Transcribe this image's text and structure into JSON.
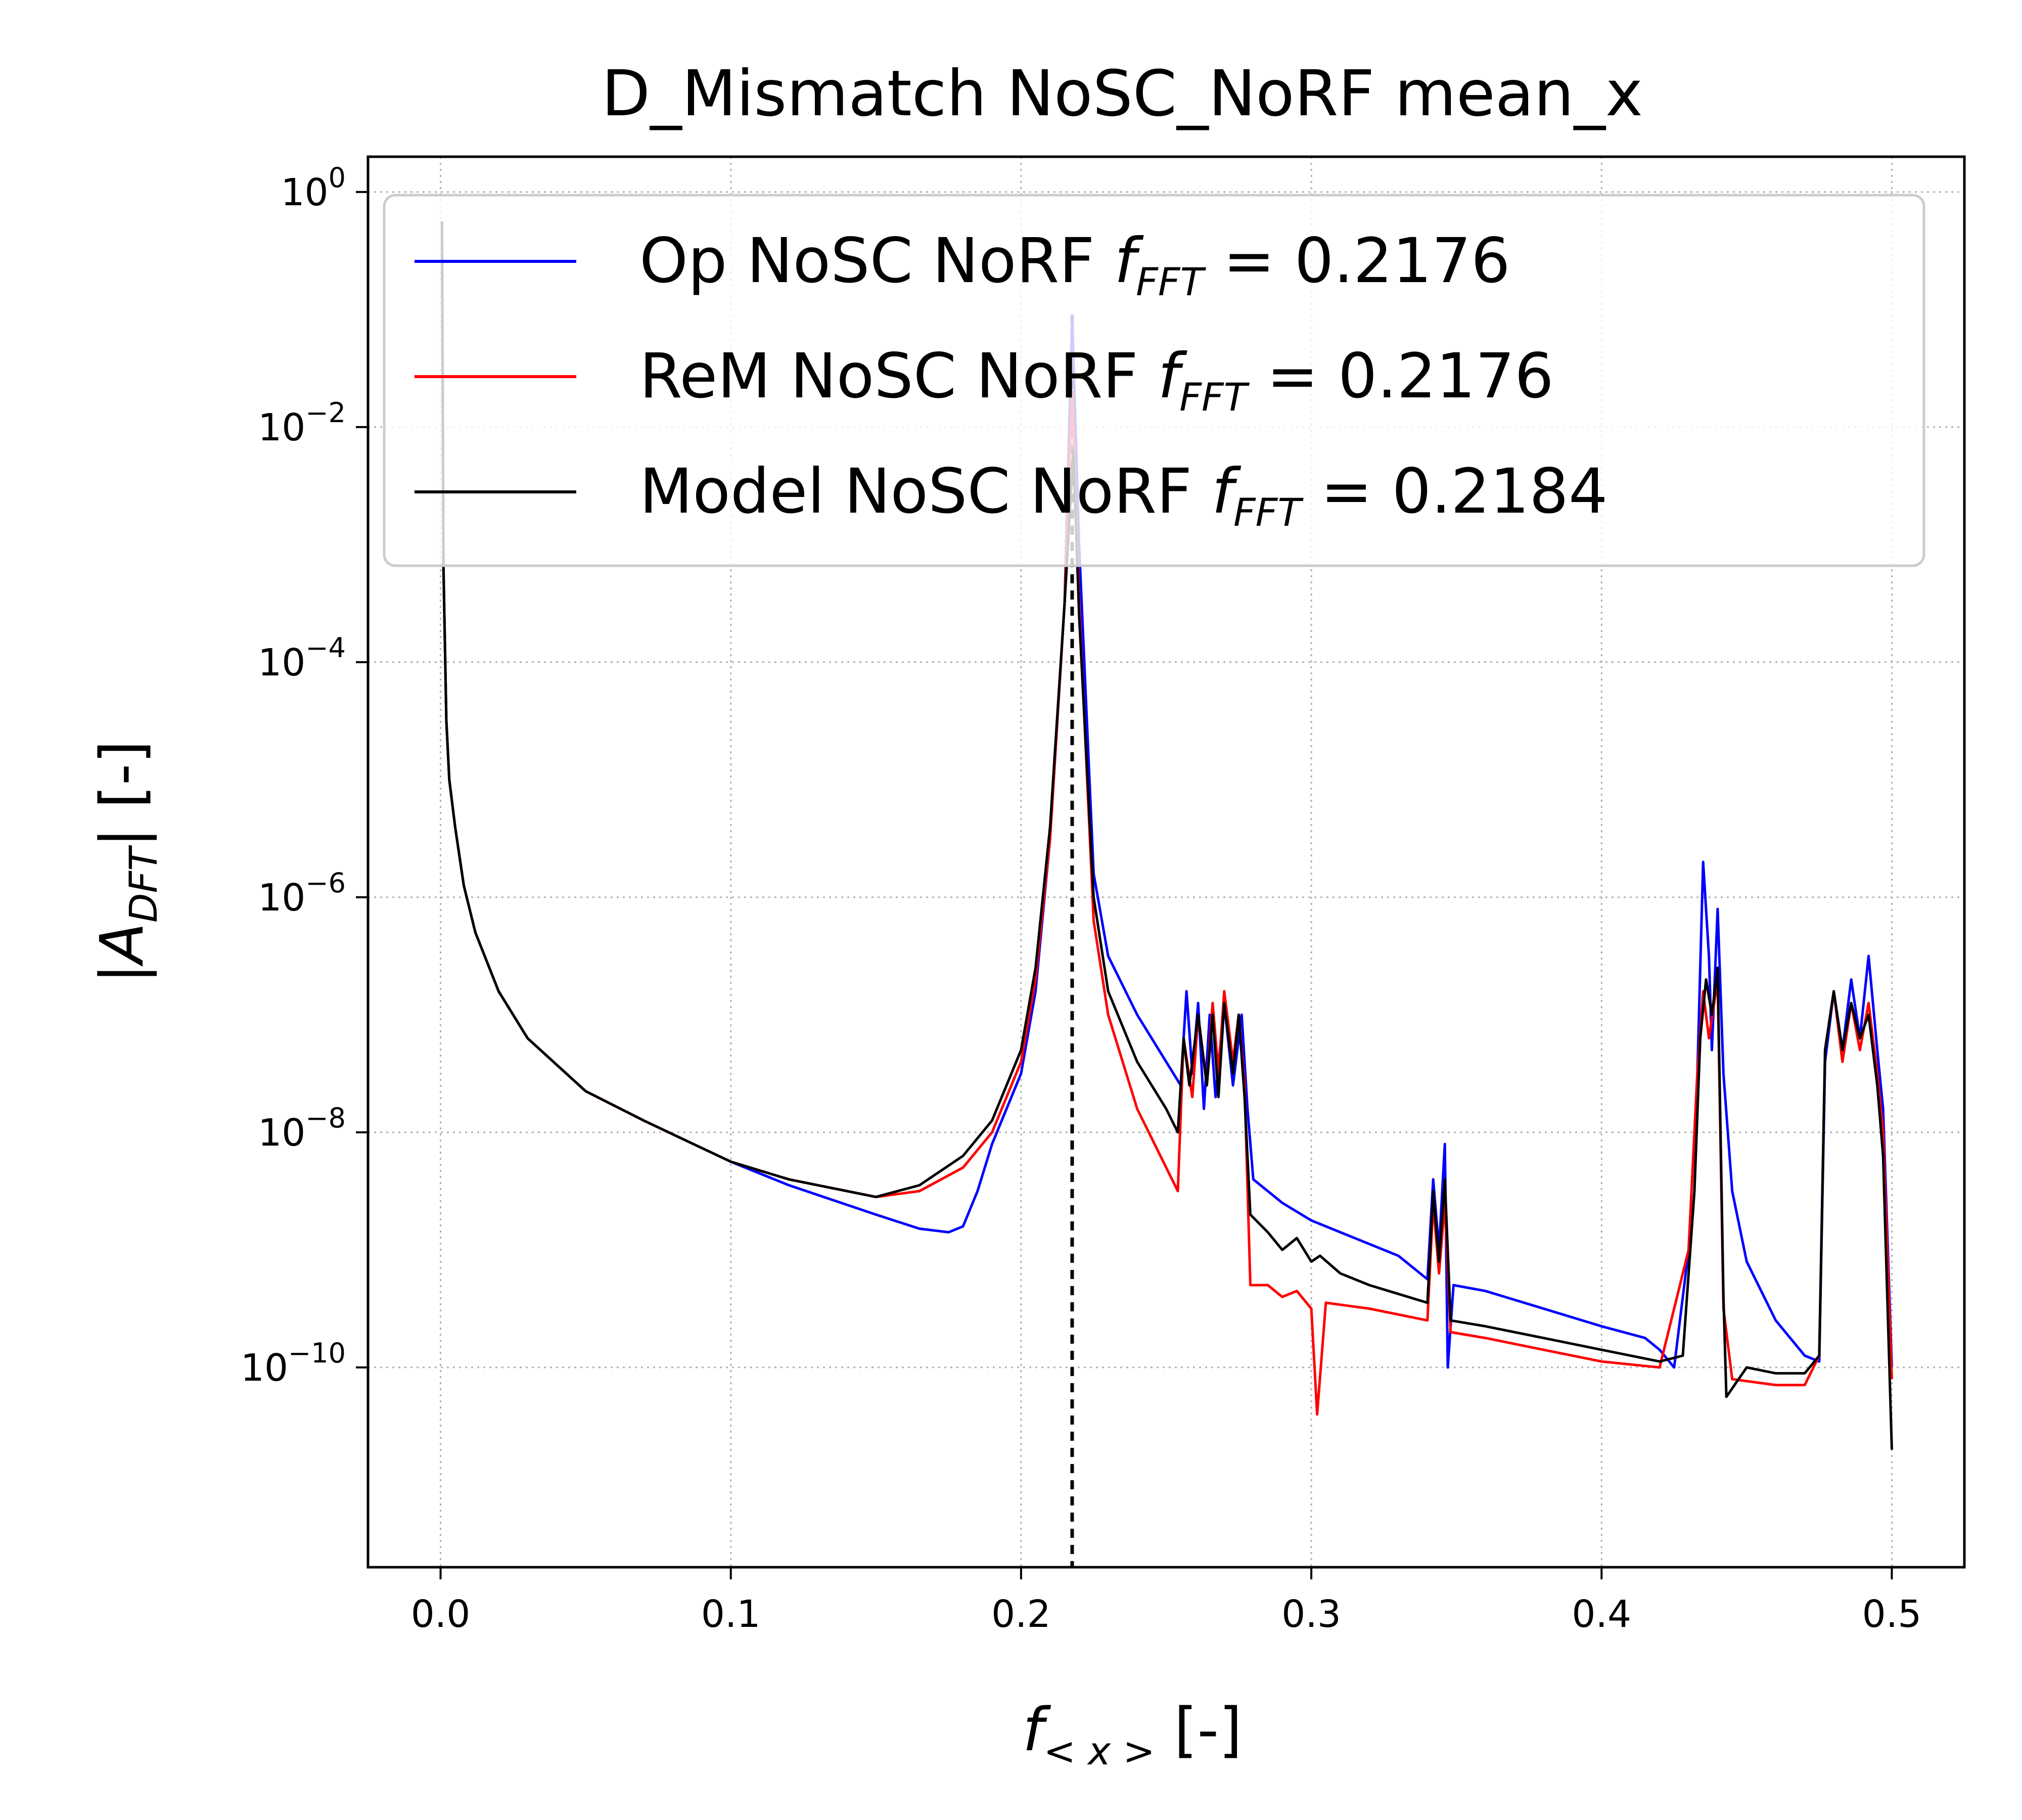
{
  "chart_data": {
    "type": "line",
    "title": "D_Mismatch NoSC_NoRF mean_x",
    "xlabel": {
      "base": "f",
      "subscript": "< x >",
      "unit": " [-]"
    },
    "ylabel": {
      "base": "|A",
      "subscript": "DFT",
      "unit": "| [-]"
    },
    "xscale": "linear",
    "yscale": "log",
    "xlim": [
      -0.025,
      0.525
    ],
    "ylim_log10": [
      -11.7,
      0.3
    ],
    "grid": true,
    "legend_position": "upper-right",
    "x_ticks": [
      {
        "value": 0.0,
        "label": "0.0"
      },
      {
        "value": 0.1,
        "label": "0.1"
      },
      {
        "value": 0.2,
        "label": "0.2"
      },
      {
        "value": 0.3,
        "label": "0.3"
      },
      {
        "value": 0.4,
        "label": "0.4"
      },
      {
        "value": 0.5,
        "label": "0.5"
      }
    ],
    "y_ticks": [
      {
        "exp": 0,
        "base": "10",
        "sup": "0"
      },
      {
        "exp": -2,
        "base": "10",
        "sup": "−2"
      },
      {
        "exp": -4,
        "base": "10",
        "sup": "−4"
      },
      {
        "exp": -6,
        "base": "10",
        "sup": "−6"
      },
      {
        "exp": -8,
        "base": "10",
        "sup": "−8"
      },
      {
        "exp": -10,
        "base": "10",
        "sup": "−10"
      }
    ],
    "vline": {
      "x": 0.2176,
      "style": "dashed",
      "color": "#000000"
    },
    "series": [
      {
        "name": "Op NoSC NoRF",
        "legend": {
          "prefix": "Op NoSC NoRF ",
          "var": "f",
          "sub": "FFT",
          "suffix": " =  0.2176"
        },
        "f_fft": 0.2176,
        "color": "#0000ff",
        "log10_points": [
          [
            0.0005,
            -0.3
          ],
          [
            0.001,
            -3.2
          ],
          [
            0.002,
            -4.5
          ],
          [
            0.003,
            -5.0
          ],
          [
            0.005,
            -5.4
          ],
          [
            0.008,
            -5.9
          ],
          [
            0.012,
            -6.3
          ],
          [
            0.02,
            -6.8
          ],
          [
            0.03,
            -7.2
          ],
          [
            0.05,
            -7.65
          ],
          [
            0.07,
            -7.9
          ],
          [
            0.1,
            -8.25
          ],
          [
            0.12,
            -8.45
          ],
          [
            0.15,
            -8.7
          ],
          [
            0.165,
            -8.82
          ],
          [
            0.175,
            -8.85
          ],
          [
            0.18,
            -8.8
          ],
          [
            0.185,
            -8.5
          ],
          [
            0.19,
            -8.1
          ],
          [
            0.2,
            -7.5
          ],
          [
            0.205,
            -6.8
          ],
          [
            0.21,
            -5.5
          ],
          [
            0.215,
            -3.5
          ],
          [
            0.2176,
            -1.05
          ],
          [
            0.22,
            -3.0
          ],
          [
            0.225,
            -5.8
          ],
          [
            0.23,
            -6.5
          ],
          [
            0.24,
            -7.0
          ],
          [
            0.25,
            -7.4
          ],
          [
            0.255,
            -7.6
          ],
          [
            0.257,
            -6.8
          ],
          [
            0.259,
            -7.5
          ],
          [
            0.261,
            -6.9
          ],
          [
            0.263,
            -7.8
          ],
          [
            0.265,
            -7.0
          ],
          [
            0.267,
            -7.7
          ],
          [
            0.27,
            -6.9
          ],
          [
            0.273,
            -7.6
          ],
          [
            0.276,
            -7.0
          ],
          [
            0.278,
            -7.8
          ],
          [
            0.28,
            -8.4
          ],
          [
            0.29,
            -8.6
          ],
          [
            0.3,
            -8.75
          ],
          [
            0.31,
            -8.85
          ],
          [
            0.33,
            -9.05
          ],
          [
            0.34,
            -9.25
          ],
          [
            0.342,
            -8.4
          ],
          [
            0.344,
            -9.0
          ],
          [
            0.346,
            -8.1
          ],
          [
            0.347,
            -10.0
          ],
          [
            0.349,
            -9.3
          ],
          [
            0.36,
            -9.35
          ],
          [
            0.38,
            -9.5
          ],
          [
            0.4,
            -9.65
          ],
          [
            0.415,
            -9.75
          ],
          [
            0.42,
            -9.85
          ],
          [
            0.425,
            -10.0
          ],
          [
            0.43,
            -9.0
          ],
          [
            0.433,
            -7.5
          ],
          [
            0.435,
            -5.7
          ],
          [
            0.437,
            -6.5
          ],
          [
            0.438,
            -7.3
          ],
          [
            0.44,
            -6.1
          ],
          [
            0.442,
            -7.5
          ],
          [
            0.445,
            -8.5
          ],
          [
            0.45,
            -9.1
          ],
          [
            0.46,
            -9.6
          ],
          [
            0.47,
            -9.9
          ],
          [
            0.475,
            -9.95
          ],
          [
            0.477,
            -7.4
          ],
          [
            0.48,
            -6.8
          ],
          [
            0.483,
            -7.3
          ],
          [
            0.486,
            -6.7
          ],
          [
            0.489,
            -7.2
          ],
          [
            0.492,
            -6.5
          ],
          [
            0.495,
            -7.3
          ],
          [
            0.497,
            -7.8
          ],
          [
            0.5,
            -10.0
          ]
        ]
      },
      {
        "name": "ReM NoSC NoRF",
        "legend": {
          "prefix": "ReM NoSC NoRF ",
          "var": "f",
          "sub": "FFT",
          "suffix": " =  0.2176"
        },
        "f_fft": 0.2176,
        "color": "#ff0000",
        "log10_points": [
          [
            0.0005,
            -0.3
          ],
          [
            0.001,
            -3.2
          ],
          [
            0.002,
            -4.5
          ],
          [
            0.003,
            -5.0
          ],
          [
            0.005,
            -5.4
          ],
          [
            0.008,
            -5.9
          ],
          [
            0.012,
            -6.3
          ],
          [
            0.02,
            -6.8
          ],
          [
            0.03,
            -7.2
          ],
          [
            0.05,
            -7.65
          ],
          [
            0.07,
            -7.9
          ],
          [
            0.1,
            -8.25
          ],
          [
            0.12,
            -8.4
          ],
          [
            0.15,
            -8.55
          ],
          [
            0.165,
            -8.5
          ],
          [
            0.18,
            -8.3
          ],
          [
            0.19,
            -8.0
          ],
          [
            0.2,
            -7.4
          ],
          [
            0.205,
            -6.7
          ],
          [
            0.21,
            -5.5
          ],
          [
            0.215,
            -3.5
          ],
          [
            0.2176,
            -1.7
          ],
          [
            0.22,
            -3.5
          ],
          [
            0.225,
            -6.2
          ],
          [
            0.23,
            -7.0
          ],
          [
            0.24,
            -7.8
          ],
          [
            0.25,
            -8.3
          ],
          [
            0.254,
            -8.5
          ],
          [
            0.256,
            -7.2
          ],
          [
            0.259,
            -7.7
          ],
          [
            0.261,
            -7.0
          ],
          [
            0.264,
            -7.6
          ],
          [
            0.266,
            -6.9
          ],
          [
            0.268,
            -7.5
          ],
          [
            0.27,
            -6.8
          ],
          [
            0.273,
            -7.4
          ],
          [
            0.275,
            -7.0
          ],
          [
            0.277,
            -7.6
          ],
          [
            0.279,
            -9.3
          ],
          [
            0.285,
            -9.3
          ],
          [
            0.29,
            -9.4
          ],
          [
            0.295,
            -9.35
          ],
          [
            0.3,
            -9.5
          ],
          [
            0.302,
            -10.4
          ],
          [
            0.305,
            -9.45
          ],
          [
            0.32,
            -9.5
          ],
          [
            0.34,
            -9.6
          ],
          [
            0.342,
            -8.6
          ],
          [
            0.344,
            -9.2
          ],
          [
            0.346,
            -8.6
          ],
          [
            0.348,
            -9.7
          ],
          [
            0.36,
            -9.75
          ],
          [
            0.38,
            -9.85
          ],
          [
            0.4,
            -9.95
          ],
          [
            0.42,
            -10.0
          ],
          [
            0.43,
            -9.0
          ],
          [
            0.433,
            -7.5
          ],
          [
            0.435,
            -6.8
          ],
          [
            0.437,
            -7.2
          ],
          [
            0.44,
            -6.7
          ],
          [
            0.442,
            -9.5
          ],
          [
            0.445,
            -10.1
          ],
          [
            0.46,
            -10.15
          ],
          [
            0.47,
            -10.15
          ],
          [
            0.475,
            -9.9
          ],
          [
            0.477,
            -7.3
          ],
          [
            0.48,
            -6.8
          ],
          [
            0.483,
            -7.4
          ],
          [
            0.486,
            -6.9
          ],
          [
            0.489,
            -7.3
          ],
          [
            0.492,
            -6.9
          ],
          [
            0.495,
            -7.5
          ],
          [
            0.497,
            -8.0
          ],
          [
            0.5,
            -10.1
          ]
        ]
      },
      {
        "name": "Model NoSC NoRF",
        "legend": {
          "prefix": "Model NoSC NoRF ",
          "var": "f",
          "sub": "FFT",
          "suffix": " =  0.2184"
        },
        "f_fft": 0.2184,
        "color": "#000000",
        "log10_points": [
          [
            0.0005,
            -0.25
          ],
          [
            0.001,
            -3.2
          ],
          [
            0.002,
            -4.5
          ],
          [
            0.003,
            -5.0
          ],
          [
            0.005,
            -5.4
          ],
          [
            0.008,
            -5.9
          ],
          [
            0.012,
            -6.3
          ],
          [
            0.02,
            -6.8
          ],
          [
            0.03,
            -7.2
          ],
          [
            0.05,
            -7.65
          ],
          [
            0.07,
            -7.9
          ],
          [
            0.1,
            -8.25
          ],
          [
            0.12,
            -8.4
          ],
          [
            0.15,
            -8.55
          ],
          [
            0.165,
            -8.45
          ],
          [
            0.18,
            -8.2
          ],
          [
            0.19,
            -7.9
          ],
          [
            0.2,
            -7.3
          ],
          [
            0.205,
            -6.6
          ],
          [
            0.21,
            -5.4
          ],
          [
            0.215,
            -3.5
          ],
          [
            0.218,
            -2.2
          ],
          [
            0.22,
            -3.6
          ],
          [
            0.225,
            -6.0
          ],
          [
            0.23,
            -6.8
          ],
          [
            0.24,
            -7.4
          ],
          [
            0.25,
            -7.8
          ],
          [
            0.254,
            -8.0
          ],
          [
            0.256,
            -7.2
          ],
          [
            0.258,
            -7.6
          ],
          [
            0.261,
            -7.0
          ],
          [
            0.264,
            -7.6
          ],
          [
            0.266,
            -7.0
          ],
          [
            0.268,
            -7.7
          ],
          [
            0.27,
            -6.9
          ],
          [
            0.273,
            -7.5
          ],
          [
            0.275,
            -7.0
          ],
          [
            0.277,
            -7.7
          ],
          [
            0.279,
            -8.7
          ],
          [
            0.285,
            -8.85
          ],
          [
            0.29,
            -9.0
          ],
          [
            0.295,
            -8.9
          ],
          [
            0.3,
            -9.1
          ],
          [
            0.303,
            -9.05
          ],
          [
            0.31,
            -9.2
          ],
          [
            0.32,
            -9.3
          ],
          [
            0.34,
            -9.45
          ],
          [
            0.342,
            -8.5
          ],
          [
            0.344,
            -9.1
          ],
          [
            0.346,
            -8.4
          ],
          [
            0.348,
            -9.6
          ],
          [
            0.36,
            -9.65
          ],
          [
            0.38,
            -9.75
          ],
          [
            0.4,
            -9.85
          ],
          [
            0.42,
            -9.95
          ],
          [
            0.428,
            -9.9
          ],
          [
            0.432,
            -8.5
          ],
          [
            0.434,
            -7.2
          ],
          [
            0.436,
            -6.7
          ],
          [
            0.438,
            -7.0
          ],
          [
            0.44,
            -6.6
          ],
          [
            0.442,
            -9.4
          ],
          [
            0.443,
            -10.25
          ],
          [
            0.45,
            -10.0
          ],
          [
            0.46,
            -10.05
          ],
          [
            0.47,
            -10.05
          ],
          [
            0.475,
            -9.9
          ],
          [
            0.477,
            -7.3
          ],
          [
            0.48,
            -6.8
          ],
          [
            0.483,
            -7.3
          ],
          [
            0.486,
            -6.9
          ],
          [
            0.489,
            -7.2
          ],
          [
            0.492,
            -7.0
          ],
          [
            0.495,
            -7.6
          ],
          [
            0.497,
            -8.2
          ],
          [
            0.5,
            -10.7
          ]
        ]
      }
    ]
  }
}
